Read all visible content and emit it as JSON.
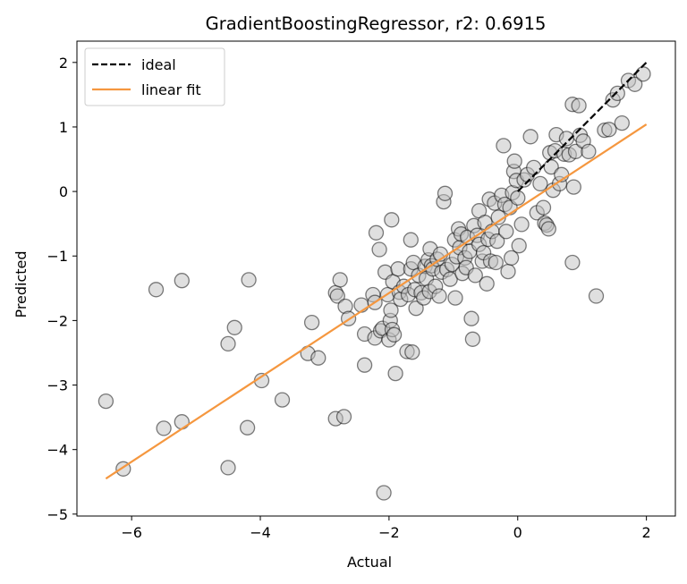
{
  "chart_data": {
    "type": "scatter",
    "title": "GradientBoostingRegressor, r2: 0.6915",
    "xlabel": "Actual",
    "ylabel": "Predicted",
    "xlim": [
      -6.85,
      2.45
    ],
    "ylim": [
      -5.03,
      2.33
    ],
    "xticks": [
      -6,
      -4,
      -2,
      0,
      2
    ],
    "yticks": [
      -5,
      -4,
      -3,
      -2,
      -1,
      0,
      1,
      2
    ],
    "grid": false,
    "legend_position": "top-left",
    "colors": {
      "points_fill": "#bfbfbf",
      "points_edge": "#000000",
      "ideal": "#000000",
      "fit": "#f5973f"
    },
    "lines": [
      {
        "name": "ideal",
        "style": "dashed",
        "x": [
          0,
          2
        ],
        "y": [
          0,
          2
        ]
      },
      {
        "name": "linear fit",
        "style": "solid",
        "x": [
          -6.4,
          2.0
        ],
        "y": [
          -4.45,
          1.04
        ]
      }
    ],
    "points": [
      [
        -6.4,
        -3.25
      ],
      [
        -6.13,
        -4.3
      ],
      [
        -5.62,
        -1.52
      ],
      [
        -5.5,
        -3.67
      ],
      [
        -5.22,
        -1.38
      ],
      [
        -5.22,
        -3.57
      ],
      [
        -4.5,
        -2.36
      ],
      [
        -4.5,
        -4.28
      ],
      [
        -4.4,
        -2.11
      ],
      [
        -4.18,
        -1.37
      ],
      [
        -4.2,
        -3.66
      ],
      [
        -3.98,
        -2.93
      ],
      [
        -3.66,
        -3.23
      ],
      [
        -3.2,
        -2.03
      ],
      [
        -3.26,
        -2.51
      ],
      [
        -3.1,
        -2.58
      ],
      [
        -2.83,
        -3.52
      ],
      [
        -2.7,
        -3.49
      ],
      [
        -2.83,
        -1.57
      ],
      [
        -2.8,
        -1.62
      ],
      [
        -2.76,
        -1.37
      ],
      [
        -2.68,
        -1.78
      ],
      [
        -2.63,
        -1.97
      ],
      [
        -2.43,
        -1.76
      ],
      [
        -2.38,
        -2.21
      ],
      [
        -2.38,
        -2.69
      ],
      [
        -2.25,
        -1.6
      ],
      [
        -2.22,
        -1.72
      ],
      [
        -2.22,
        -2.27
      ],
      [
        -2.2,
        -0.64
      ],
      [
        -2.15,
        -0.9
      ],
      [
        -2.13,
        -2.16
      ],
      [
        -2.1,
        -2.12
      ],
      [
        -2.08,
        -4.67
      ],
      [
        -2.06,
        -1.25
      ],
      [
        -2.02,
        -1.6
      ],
      [
        -2.0,
        -2.3
      ],
      [
        -1.98,
        -2.0
      ],
      [
        -1.97,
        -1.84
      ],
      [
        -1.96,
        -0.44
      ],
      [
        -1.95,
        -2.14
      ],
      [
        -1.94,
        -1.4
      ],
      [
        -1.92,
        -2.22
      ],
      [
        -1.9,
        -2.82
      ],
      [
        -1.86,
        -1.2
      ],
      [
        -1.84,
        -1.56
      ],
      [
        -1.82,
        -1.67
      ],
      [
        -1.77,
        -1.47
      ],
      [
        -1.72,
        -2.48
      ],
      [
        -1.7,
        -1.6
      ],
      [
        -1.66,
        -0.75
      ],
      [
        -1.66,
        -1.2
      ],
      [
        -1.64,
        -2.49
      ],
      [
        -1.62,
        -1.1
      ],
      [
        -1.6,
        -1.52
      ],
      [
        -1.58,
        -1.81
      ],
      [
        -1.54,
        -1.3
      ],
      [
        -1.5,
        -1.57
      ],
      [
        -1.46,
        -1.65
      ],
      [
        -1.44,
        -1.16
      ],
      [
        -1.42,
        -1.35
      ],
      [
        -1.39,
        -1.06
      ],
      [
        -1.37,
        -1.55
      ],
      [
        -1.36,
        -0.89
      ],
      [
        -1.34,
        -1.15
      ],
      [
        -1.32,
        -1.2
      ],
      [
        -1.28,
        -1.47
      ],
      [
        -1.25,
        -1.05
      ],
      [
        -1.22,
        -1.62
      ],
      [
        -1.2,
        -0.97
      ],
      [
        -1.18,
        -1.25
      ],
      [
        -1.15,
        -0.16
      ],
      [
        -1.13,
        -0.03
      ],
      [
        -1.1,
        -1.21
      ],
      [
        -1.05,
        -1.36
      ],
      [
        -1.02,
        -1.13
      ],
      [
        -0.98,
        -0.75
      ],
      [
        -0.97,
        -1.65
      ],
      [
        -0.95,
        -1.01
      ],
      [
        -0.92,
        -0.58
      ],
      [
        -0.9,
        -0.87
      ],
      [
        -0.88,
        -0.66
      ],
      [
        -0.86,
        -1.27
      ],
      [
        -0.82,
        -1.03
      ],
      [
        -0.8,
        -1.18
      ],
      [
        -0.78,
        -0.71
      ],
      [
        -0.75,
        -0.93
      ],
      [
        -0.72,
        -1.97
      ],
      [
        -0.7,
        -2.29
      ],
      [
        -0.68,
        -0.53
      ],
      [
        -0.66,
        -1.3
      ],
      [
        -0.63,
        -0.68
      ],
      [
        -0.6,
        -0.3
      ],
      [
        -0.6,
        -0.82
      ],
      [
        -0.55,
        -1.08
      ],
      [
        -0.53,
        -0.95
      ],
      [
        -0.51,
        -0.48
      ],
      [
        -0.48,
        -1.43
      ],
      [
        -0.46,
        -0.74
      ],
      [
        -0.44,
        -0.12
      ],
      [
        -0.42,
        -1.08
      ],
      [
        -0.4,
        -0.62
      ],
      [
        -0.36,
        -0.18
      ],
      [
        -0.34,
        -1.1
      ],
      [
        -0.32,
        -0.77
      ],
      [
        -0.3,
        -0.4
      ],
      [
        -0.25,
        -0.06
      ],
      [
        -0.22,
        0.71
      ],
      [
        -0.2,
        -0.2
      ],
      [
        -0.18,
        -0.62
      ],
      [
        -0.15,
        -1.24
      ],
      [
        -0.12,
        -0.25
      ],
      [
        -0.1,
        -1.03
      ],
      [
        -0.08,
        -0.02
      ],
      [
        -0.06,
        0.31
      ],
      [
        -0.05,
        0.47
      ],
      [
        -0.02,
        0.17
      ],
      [
        0.0,
        -0.1
      ],
      [
        0.02,
        -0.84
      ],
      [
        0.06,
        -0.51
      ],
      [
        0.1,
        0.18
      ],
      [
        0.15,
        0.26
      ],
      [
        0.2,
        0.85
      ],
      [
        0.25,
        0.37
      ],
      [
        0.3,
        -0.33
      ],
      [
        0.35,
        0.12
      ],
      [
        0.4,
        -0.25
      ],
      [
        0.42,
        -0.49
      ],
      [
        0.45,
        -0.52
      ],
      [
        0.48,
        -0.58
      ],
      [
        0.5,
        0.6
      ],
      [
        0.52,
        0.38
      ],
      [
        0.55,
        0.02
      ],
      [
        0.58,
        0.63
      ],
      [
        0.6,
        0.88
      ],
      [
        0.65,
        0.12
      ],
      [
        0.68,
        0.26
      ],
      [
        0.72,
        0.58
      ],
      [
        0.76,
        0.82
      ],
      [
        0.8,
        0.57
      ],
      [
        0.85,
        1.35
      ],
      [
        0.87,
        0.07
      ],
      [
        0.85,
        -1.1
      ],
      [
        0.9,
        0.62
      ],
      [
        0.95,
        1.33
      ],
      [
        0.97,
        0.87
      ],
      [
        1.02,
        0.78
      ],
      [
        1.1,
        0.62
      ],
      [
        1.22,
        -1.62
      ],
      [
        1.35,
        0.95
      ],
      [
        1.42,
        0.96
      ],
      [
        1.48,
        1.42
      ],
      [
        1.55,
        1.52
      ],
      [
        1.62,
        1.06
      ],
      [
        1.72,
        1.72
      ],
      [
        1.82,
        1.66
      ],
      [
        1.95,
        1.82
      ]
    ],
    "legend": [
      {
        "label": "ideal",
        "style": "dashed",
        "color": "#000000"
      },
      {
        "label": "linear fit",
        "style": "solid",
        "color": "#f5973f"
      }
    ]
  }
}
